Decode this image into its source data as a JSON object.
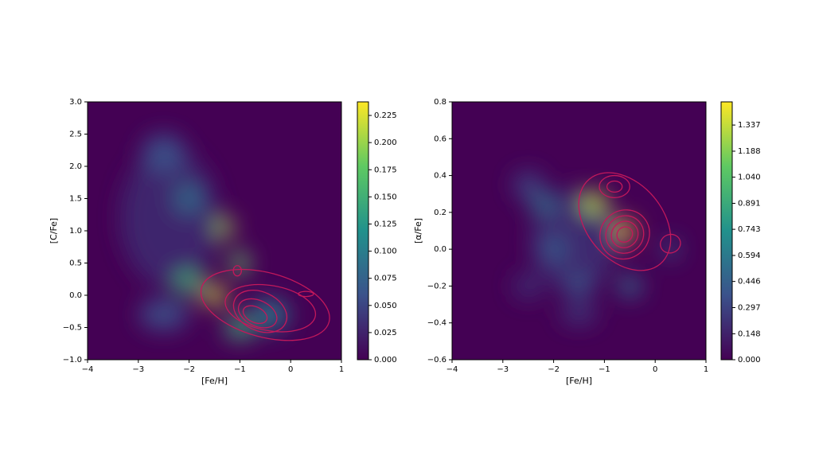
{
  "chart_data": [
    {
      "type": "heatmap",
      "xlabel": "[Fe/H]",
      "ylabel": "[C/Fe]",
      "xlim": [
        -4,
        1
      ],
      "ylim": [
        -1,
        3
      ],
      "xticks": [
        {
          "value": -4,
          "label": "−4"
        },
        {
          "value": -3,
          "label": "−3"
        },
        {
          "value": -2,
          "label": "−2"
        },
        {
          "value": -1,
          "label": "−1"
        },
        0,
        1
      ],
      "yticks": [
        {
          "value": -1,
          "label": "−1.0"
        },
        {
          "value": -0.5,
          "label": "−0.5"
        },
        {
          "value": 0,
          "label": "0.0"
        },
        0.5,
        {
          "value": 1,
          "label": "1.0"
        },
        1.5,
        {
          "value": 2,
          "label": "2.0"
        },
        2.5,
        {
          "value": 3,
          "label": "3.0"
        }
      ],
      "clim": [
        0,
        0.2375
      ],
      "cticks": [
        {
          "value": 0,
          "label": "0.000"
        },
        {
          "value": 0.025,
          "label": "0.025"
        },
        {
          "value": 0.05,
          "label": "0.050"
        },
        {
          "value": 0.075,
          "label": "0.075"
        },
        {
          "value": 0.1,
          "label": "0.100"
        },
        {
          "value": 0.125,
          "label": "0.125"
        },
        {
          "value": 0.15,
          "label": "0.150"
        },
        {
          "value": 0.175,
          "label": "0.175"
        },
        {
          "value": 0.2,
          "label": "0.200"
        },
        {
          "value": 0.225,
          "label": "0.225"
        }
      ],
      "colormap": [
        "#440154",
        "#3b528b",
        "#21918c",
        "#5ec962",
        "#fde725"
      ],
      "contour_color": "#c2185b",
      "hotspots": [
        {
          "x": -2.4,
          "y": 1.2,
          "sx": 1.6,
          "sy": 1.8,
          "value": 0.03
        },
        {
          "x": -2.5,
          "y": -0.3,
          "sx": 0.8,
          "sy": 0.4,
          "value": 0.06
        },
        {
          "x": -2.5,
          "y": 2.2,
          "sx": 0.7,
          "sy": 0.5,
          "value": 0.06
        },
        {
          "x": -2.0,
          "y": 1.5,
          "sx": 0.5,
          "sy": 0.4,
          "value": 0.08
        },
        {
          "x": -0.4,
          "y": -0.3,
          "sx": 0.6,
          "sy": 0.4,
          "value": 0.1
        },
        {
          "x": -2.0,
          "y": 0.2,
          "sx": 0.5,
          "sy": 0.3,
          "value": 0.15
        },
        {
          "x": -1.0,
          "y": -0.5,
          "sx": 0.5,
          "sy": 0.3,
          "value": 0.15
        },
        {
          "x": -1.0,
          "y": 0.5,
          "sx": 0.3,
          "sy": 0.3,
          "value": 0.18
        },
        {
          "x": -1.3,
          "y": 1.05,
          "sx": 0.3,
          "sy": 0.25,
          "value": 0.2
        },
        {
          "x": -1.5,
          "y": 0.0,
          "sx": 0.4,
          "sy": 0.25,
          "value": 0.22
        }
      ],
      "contours": [
        {
          "x": -0.5,
          "y": -0.15,
          "rx": 1.3,
          "ry": 0.5,
          "angle": -15
        },
        {
          "x": -0.4,
          "y": -0.2,
          "rx": 0.9,
          "ry": 0.35,
          "angle": -10
        },
        {
          "x": -0.6,
          "y": -0.25,
          "rx": 0.55,
          "ry": 0.3,
          "angle": -25
        },
        {
          "x": -0.65,
          "y": -0.28,
          "rx": 0.4,
          "ry": 0.2,
          "angle": -25
        },
        {
          "x": -0.7,
          "y": -0.3,
          "rx": 0.25,
          "ry": 0.12,
          "angle": -25
        },
        {
          "x": 0.3,
          "y": 0.02,
          "rx": 0.15,
          "ry": 0.04,
          "angle": 0
        },
        {
          "x": -1.05,
          "y": 0.38,
          "rx": 0.08,
          "ry": 0.08,
          "angle": 0
        }
      ]
    },
    {
      "type": "heatmap",
      "xlabel": "[Fe/H]",
      "ylabel": "[α/Fe]",
      "xlim": [
        -4,
        1
      ],
      "ylim": [
        -0.6,
        0.8
      ],
      "xticks": [
        {
          "value": -4,
          "label": "−4"
        },
        {
          "value": -3,
          "label": "−3"
        },
        {
          "value": -2,
          "label": "−2"
        },
        {
          "value": -1,
          "label": "−1"
        },
        0,
        1
      ],
      "yticks": [
        {
          "value": -0.6,
          "label": "−0.6"
        },
        {
          "value": -0.4,
          "label": "−0.4"
        },
        {
          "value": -0.2,
          "label": "−0.2"
        },
        {
          "value": 0,
          "label": "0.0"
        },
        0.2,
        0.4,
        0.6,
        0.8
      ],
      "clim": [
        0,
        1.469
      ],
      "cticks": [
        {
          "value": 0,
          "label": "0.000"
        },
        0.148,
        0.297,
        0.446,
        0.594,
        0.743,
        0.891,
        {
          "value": 1.04,
          "label": "1.040"
        },
        1.188,
        1.337
      ],
      "colormap": [
        "#440154",
        "#3b528b",
        "#21918c",
        "#5ec962",
        "#fde725"
      ],
      "contour_color": "#c2185b",
      "hotspots": [
        {
          "x": -1.6,
          "y": 0.05,
          "sx": 1.4,
          "sy": 0.45,
          "value": 0.2
        },
        {
          "x": -2.5,
          "y": -0.2,
          "sx": 0.5,
          "sy": 0.12,
          "value": 0.2
        },
        {
          "x": -1.5,
          "y": -0.35,
          "sx": 0.6,
          "sy": 0.1,
          "value": 0.25
        },
        {
          "x": -2.5,
          "y": 0.35,
          "sx": 0.5,
          "sy": 0.12,
          "value": 0.3
        },
        {
          "x": -2.0,
          "y": 0.0,
          "sx": 0.5,
          "sy": 0.12,
          "value": 0.4
        },
        {
          "x": -1.5,
          "y": -0.2,
          "sx": 0.5,
          "sy": 0.1,
          "value": 0.4
        },
        {
          "x": -2.2,
          "y": 0.25,
          "sx": 0.5,
          "sy": 0.1,
          "value": 0.5
        },
        {
          "x": -0.5,
          "y": -0.2,
          "sx": 0.4,
          "sy": 0.1,
          "value": 0.5
        },
        {
          "x": 0.3,
          "y": 0.0,
          "sx": 0.25,
          "sy": 0.08,
          "value": 0.5
        },
        {
          "x": -1.2,
          "y": 0.25,
          "sx": 0.45,
          "sy": 0.1,
          "value": 1.3
        },
        {
          "x": -0.6,
          "y": 0.1,
          "sx": 0.3,
          "sy": 0.1,
          "value": 1.45
        }
      ],
      "contours": [
        {
          "x": -0.6,
          "y": 0.15,
          "rx": 0.75,
          "ry": 0.3,
          "angle": 40
        },
        {
          "x": -0.6,
          "y": 0.08,
          "rx": 0.5,
          "ry": 0.13,
          "angle": 40
        },
        {
          "x": -0.6,
          "y": 0.08,
          "rx": 0.38,
          "ry": 0.1,
          "angle": 40
        },
        {
          "x": -0.6,
          "y": 0.08,
          "rx": 0.27,
          "ry": 0.07,
          "angle": 40
        },
        {
          "x": -0.6,
          "y": 0.08,
          "rx": 0.16,
          "ry": 0.04,
          "angle": 40
        },
        {
          "x": -0.8,
          "y": 0.34,
          "rx": 0.3,
          "ry": 0.06,
          "angle": 0
        },
        {
          "x": -0.8,
          "y": 0.34,
          "rx": 0.15,
          "ry": 0.03,
          "angle": 0
        },
        {
          "x": 0.3,
          "y": 0.03,
          "rx": 0.2,
          "ry": 0.05,
          "angle": 20
        }
      ]
    }
  ]
}
